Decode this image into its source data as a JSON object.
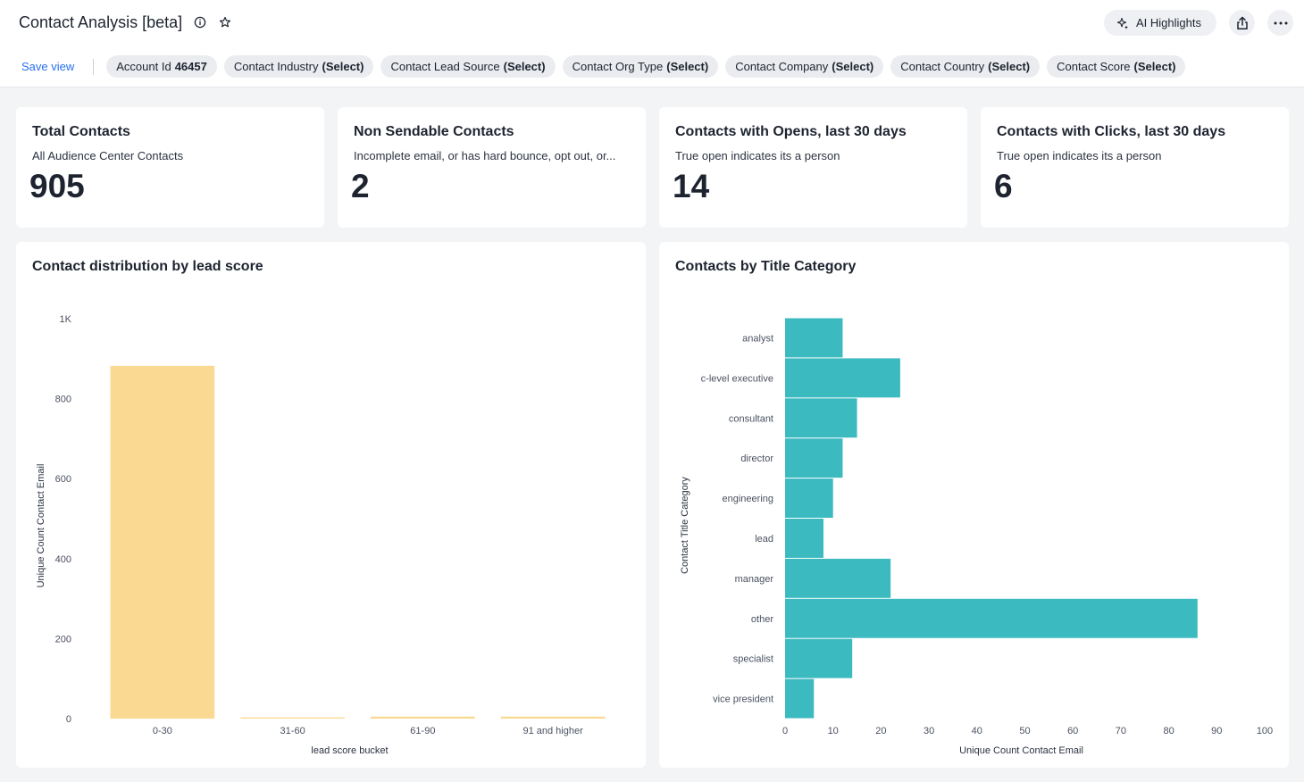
{
  "header": {
    "title": "Contact Analysis [beta]",
    "ai_highlights_label": "AI Highlights",
    "icons": {
      "info": "info-icon",
      "favorite": "star-icon",
      "ai": "sparkle-icon",
      "share": "share-icon",
      "more": "more-icon"
    }
  },
  "filters": {
    "save_view_label": "Save view",
    "chips": [
      {
        "label": "Account Id",
        "value": "46457"
      },
      {
        "label": "Contact Industry",
        "value": "(Select)"
      },
      {
        "label": "Contact Lead Source",
        "value": "(Select)"
      },
      {
        "label": "Contact Org Type",
        "value": "(Select)"
      },
      {
        "label": "Contact Company",
        "value": "(Select)"
      },
      {
        "label": "Contact Country",
        "value": "(Select)"
      },
      {
        "label": "Contact Score",
        "value": "(Select)"
      }
    ]
  },
  "kpis": [
    {
      "title": "Total Contacts",
      "subtitle": "All Audience Center Contacts",
      "value": "905"
    },
    {
      "title": "Non Sendable Contacts",
      "subtitle": "Incomplete email, or has hard bounce, opt out, or...",
      "value": "2"
    },
    {
      "title": "Contacts with Opens, last 30 days",
      "subtitle": "True open indicates its a person",
      "value": "14"
    },
    {
      "title": "Contacts with Clicks, last 30 days",
      "subtitle": "True open indicates its a person",
      "value": "6"
    }
  ],
  "colors": {
    "lead_bar": "#fad993",
    "title_bar": "#3bbac0",
    "accent": "#2770ef"
  },
  "chart_data": [
    {
      "type": "bar",
      "title": "Contact distribution by lead score",
      "xlabel": "lead score bucket",
      "ylabel": "Unique Count Contact Email",
      "categories": [
        "0-30",
        "31-60",
        "61-90",
        "91 and higher"
      ],
      "values": [
        882,
        3,
        5,
        5
      ],
      "ylim": [
        0,
        1000
      ],
      "yticks": [
        0,
        200,
        400,
        600,
        800,
        1000
      ],
      "ytick_labels": [
        "0",
        "200",
        "400",
        "600",
        "800",
        "1K"
      ],
      "grid": false,
      "legend": "none"
    },
    {
      "type": "bar",
      "orientation": "horizontal",
      "title": "Contacts by Title Category",
      "xlabel": "Unique Count Contact Email",
      "ylabel": "Contact Title Category",
      "categories": [
        "analyst",
        "c-level executive",
        "consultant",
        "director",
        "engineering",
        "lead",
        "manager",
        "other",
        "specialist",
        "vice president"
      ],
      "values": [
        12,
        24,
        15,
        12,
        10,
        8,
        22,
        86,
        14,
        6
      ],
      "xlim": [
        0,
        100
      ],
      "xticks": [
        0,
        10,
        20,
        30,
        40,
        50,
        60,
        70,
        80,
        90,
        100
      ],
      "grid": false,
      "legend": "none"
    }
  ]
}
